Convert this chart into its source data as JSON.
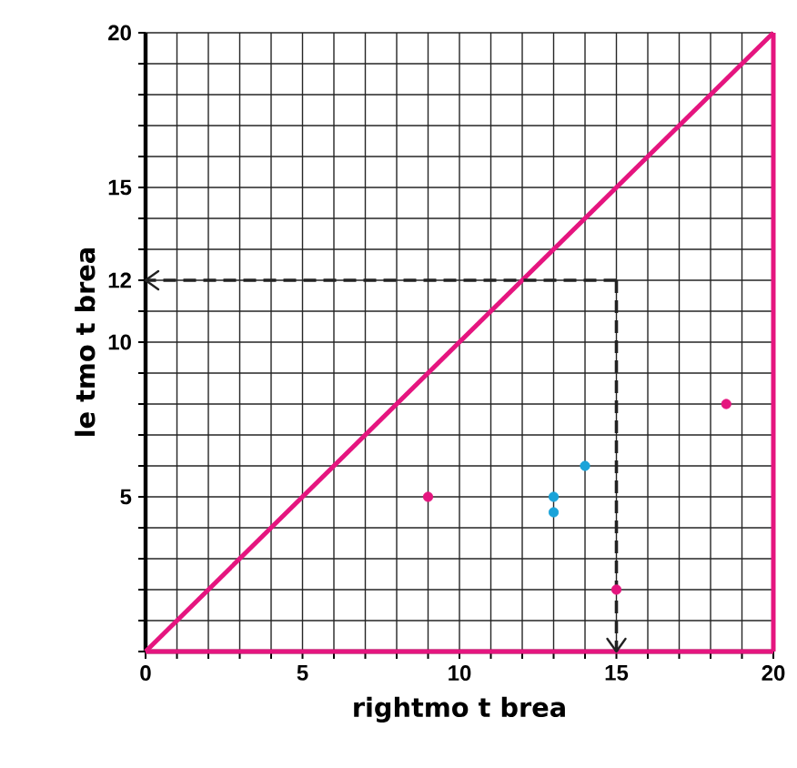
{
  "chart_data": {
    "type": "scatter",
    "xlabel": "rightmo t brea",
    "ylabel": "le tmo t brea",
    "xlim": [
      0,
      20
    ],
    "ylim": [
      0,
      20
    ],
    "xticks": [
      0,
      {
        "value": 1,
        "label": null
      },
      {
        "value": 2,
        "label": null
      },
      {
        "value": 3,
        "label": null
      },
      {
        "value": 4,
        "label": null
      },
      5,
      {
        "value": 6,
        "label": null
      },
      {
        "value": 7,
        "label": null
      },
      {
        "value": 8,
        "label": null
      },
      {
        "value": 9,
        "label": null
      },
      10,
      {
        "value": 11,
        "label": null
      },
      {
        "value": 12,
        "label": null
      },
      {
        "value": 13,
        "label": null
      },
      {
        "value": 14,
        "label": null
      },
      15,
      {
        "value": 16,
        "label": null
      },
      {
        "value": 17,
        "label": null
      },
      {
        "value": 18,
        "label": null
      },
      {
        "value": 19,
        "label": null
      },
      20
    ],
    "yticks": [
      {
        "value": 0,
        "label": null
      },
      {
        "value": 1,
        "label": null
      },
      {
        "value": 2,
        "label": null
      },
      {
        "value": 3,
        "label": null
      },
      {
        "value": 4,
        "label": null
      },
      5,
      {
        "value": 6,
        "label": null
      },
      {
        "value": 7,
        "label": null
      },
      {
        "value": 8,
        "label": null
      },
      {
        "value": 9,
        "label": null
      },
      10,
      {
        "value": 11,
        "label": null
      },
      12,
      {
        "value": 13,
        "label": null
      },
      {
        "value": 14,
        "label": null
      },
      15,
      {
        "value": 16,
        "label": null
      },
      {
        "value": 17,
        "label": null
      },
      {
        "value": 18,
        "label": null
      },
      {
        "value": 19,
        "label": null
      },
      20
    ],
    "grid": true,
    "series": [
      {
        "type": "line",
        "color": "#e5157f",
        "x": [
          0,
          20
        ],
        "values": [
          0,
          20
        ],
        "marker": "none"
      },
      {
        "type": "line",
        "color": "#222222",
        "x": [
          15,
          15
        ],
        "values": [
          12,
          0
        ],
        "marker": "none",
        "line_style": "dashed"
      },
      {
        "type": "line",
        "color": "#222222",
        "x": [
          15,
          0
        ],
        "values": [
          12,
          12
        ],
        "marker": "none",
        "line_style": "dashed"
      },
      {
        "color": "#e5157f",
        "x": [
          9,
          15,
          18.5
        ],
        "values": [
          5,
          2,
          8
        ],
        "marker": "circle"
      },
      {
        "color": "#1aa3d9",
        "x": [
          13,
          13,
          14
        ],
        "values": [
          5,
          4.5,
          6
        ],
        "marker": "circle"
      }
    ],
    "ref_lines": [
      {
        "axis": "y",
        "value": 0,
        "color": "#e5157f"
      },
      {
        "axis": "x",
        "value": 20,
        "color": "#e5157f"
      }
    ]
  }
}
